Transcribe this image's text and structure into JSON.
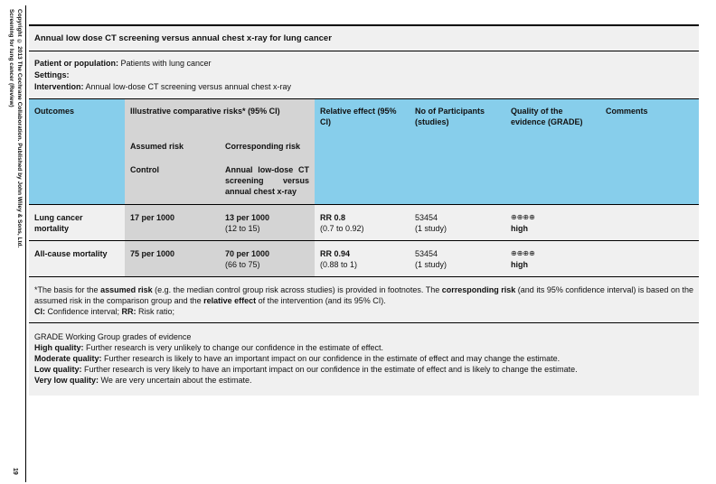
{
  "sidebar": {
    "line1": "Screening for lung cancer (Review)",
    "line2": "Copyright © 2013 The Cochrane Collaboration. Published by John Wiley & Sons, Ltd.",
    "page_number": "19"
  },
  "table": {
    "title": "Annual low dose CT screening versus annual chest x-ray for lung cancer",
    "meta": [
      {
        "label": "Patient or population:",
        "value": " Patients with lung cancer"
      },
      {
        "label": "Settings:",
        "value": ""
      },
      {
        "label": "Intervention:",
        "value": " Annual low-dose CT screening versus annual chest x-ray"
      }
    ],
    "headers": {
      "outcomes": "Outcomes",
      "illustrative": "Illustrative comparative risks* (95% CI)",
      "relative_effect": "Relative effect (95% CI)",
      "participants": "No of Participants (studies)",
      "quality": "Quality of the evidence (GRADE)",
      "comments": "Comments",
      "assumed_risk": "Assumed risk",
      "corresponding_risk": "Corresponding risk",
      "control": "Control",
      "intervention_col": "Annual low-dose CT screening versus annual chest x-ray"
    },
    "rows": [
      {
        "outcome": "Lung cancer mortality",
        "assumed": "17 per 1000",
        "corresponding": "13 per 1000",
        "corresponding_ci": "(12 to 15)",
        "relative": "RR 0.8",
        "relative_ci": "(0.7 to 0.92)",
        "participants": "53454",
        "studies": "(1 study)",
        "quality_symbols": "⊕⊕⊕⊕",
        "quality": "high",
        "comments": ""
      },
      {
        "outcome": "All-cause mortality",
        "assumed": "75 per 1000",
        "corresponding": "70 per 1000",
        "corresponding_ci": "(66 to 75)",
        "relative": "RR 0.94",
        "relative_ci": "(0.88 to 1)",
        "participants": "53454",
        "studies": "(1 study)",
        "quality_symbols": "⊕⊕⊕⊕",
        "quality": "high",
        "comments": ""
      }
    ],
    "footnote": {
      "p1": "*The basis for the ",
      "b1": "assumed risk",
      "p2": " (e.g. the median control group risk across studies) is provided in footnotes. The ",
      "b2": "corresponding risk",
      "p3": " (and its 95% confidence interval) is based on the assumed risk in the comparison group and the ",
      "b3": "relative effect",
      "p4": " of the intervention (and its 95% CI).",
      "abbr1_label": "CI:",
      "abbr1_text": " Confidence interval; ",
      "abbr2_label": "RR:",
      "abbr2_text": " Risk ratio;"
    },
    "grade": {
      "heading": "GRADE Working Group grades of evidence",
      "levels": [
        {
          "label": "High quality:",
          "text": " Further research is very unlikely to change our confidence in the estimate of effect."
        },
        {
          "label": "Moderate quality:",
          "text": " Further research is likely to have an important impact on our confidence in the estimate of effect and may change the estimate."
        },
        {
          "label": "Low quality:",
          "text": " Further research is very likely to have an important impact on our confidence in the estimate of effect and is likely to change the estimate."
        },
        {
          "label": "Very low quality:",
          "text": " We are very uncertain about the estimate."
        }
      ]
    }
  },
  "colors": {
    "header_blue": "#87ceeb",
    "risk_grey": "#d4d4d4",
    "pale_grey": "#f0f0f0"
  }
}
